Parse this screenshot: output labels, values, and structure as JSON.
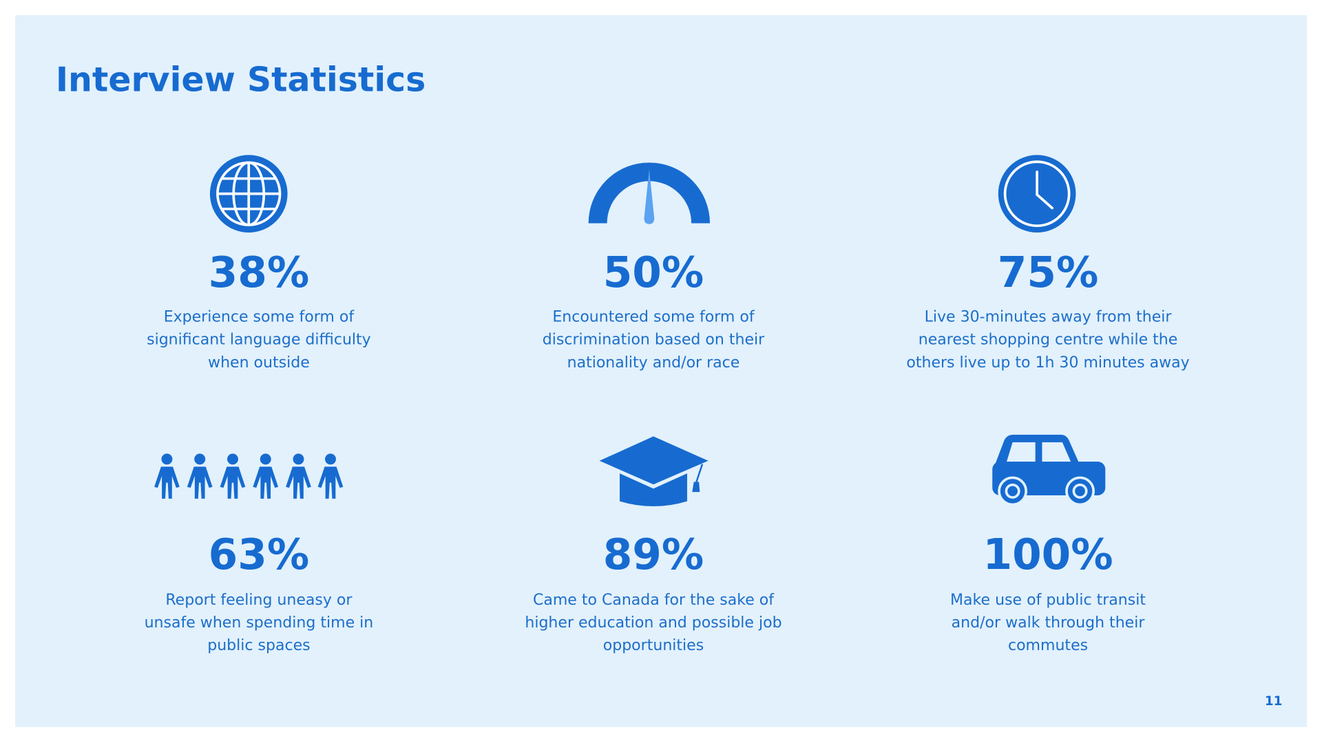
{
  "title": "Interview Statistics",
  "stats": [
    {
      "value": "38%",
      "description": [
        "Experience some form of",
        "significant language difficulty",
        "when outside"
      ]
    },
    {
      "value": "50%",
      "description": [
        "Encountered some form of",
        "discrimination based on their",
        "nationality and/or race"
      ]
    },
    {
      "value": "75%",
      "description": [
        "Live 30-minutes away from their",
        "nearest shopping centre while the",
        "others live up to 1h 30 minutes away"
      ]
    },
    {
      "value": "63%",
      "description": [
        "Report feeling uneasy or",
        "unsafe when spending time in",
        "public spaces"
      ]
    },
    {
      "value": "89%",
      "description": [
        "Came to Canada for the sake of",
        "higher education and possible job",
        "opportunities"
      ]
    },
    {
      "value": "100%",
      "description": [
        "Make use of public transit",
        "and/or walk through their",
        "commutes"
      ]
    }
  ],
  "page_number": "11"
}
